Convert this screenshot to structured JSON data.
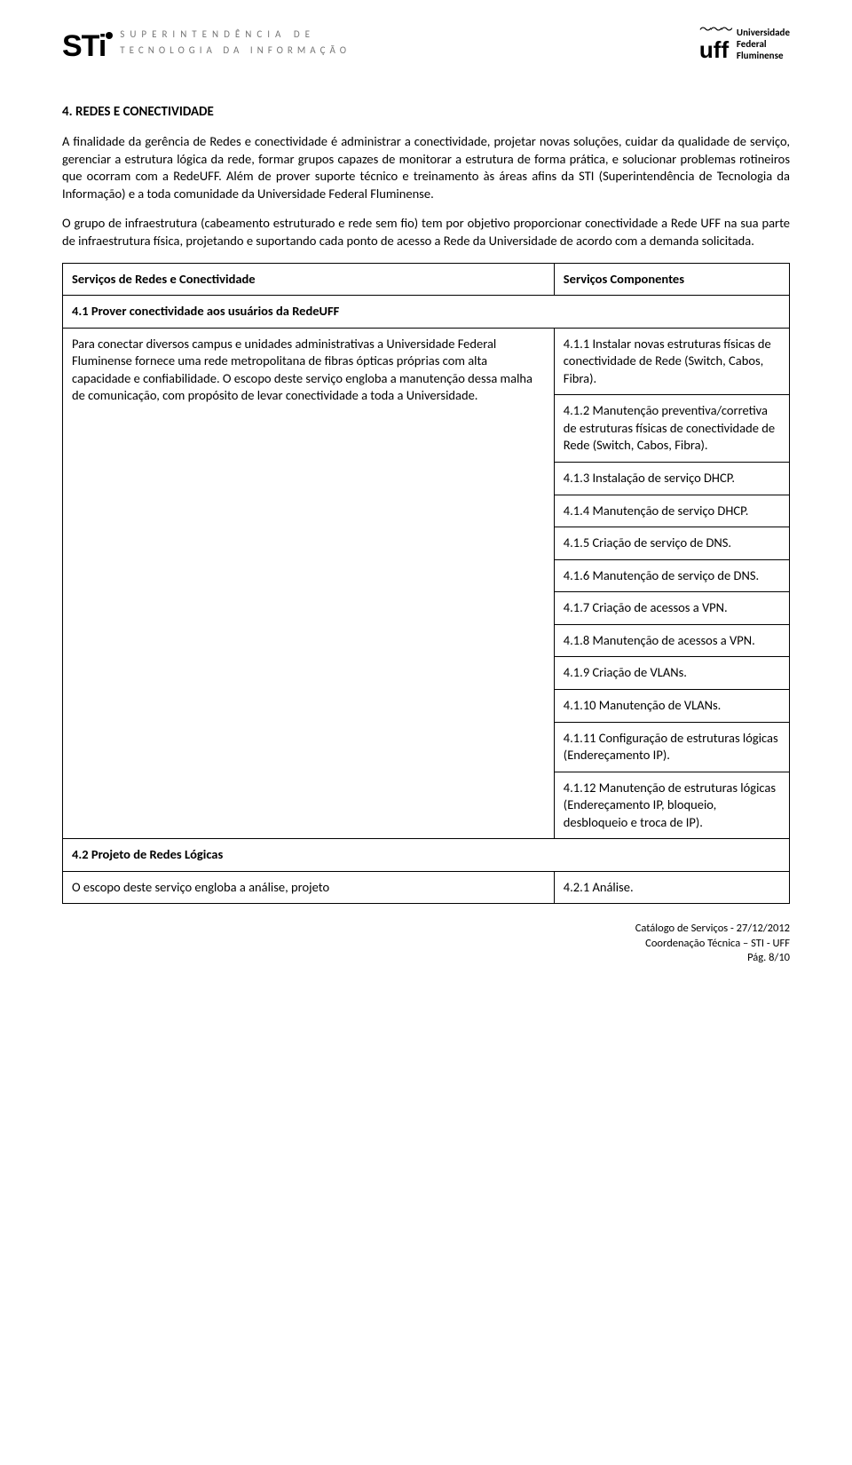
{
  "header": {
    "left": {
      "mark": "STi",
      "line1": "SUPERINTENDÊNCIA DE",
      "line2": "TECNOLOGIA DA INFORMAÇÃO"
    },
    "right": {
      "mark": "uff",
      "name1": "Universidade",
      "name2": "Federal",
      "name3": "Fluminense"
    }
  },
  "title": "4. REDES E CONECTIVIDADE",
  "para1": "A finalidade da gerência de Redes e conectividade é administrar a conectividade, projetar novas soluções, cuidar da qualidade de serviço, gerenciar a estrutura lógica da rede, formar grupos capazes de monitorar a estrutura de forma prática, e solucionar problemas rotineiros que ocorram com a RedeUFF. Além de prover suporte técnico e treinamento às áreas afins da STI (Superintendência de Tecnologia da Informação) e a toda comunidade da Universidade Federal Fluminense.",
  "para2": "O grupo de infraestrutura (cabeamento estruturado e rede sem fio) tem por objetivo proporcionar conectividade a Rede UFF na sua parte de infraestrutura física, projetando e suportando cada ponto de acesso a Rede da Universidade de acordo com a demanda solicitada.",
  "table": {
    "head_left": "Serviços de Redes e Conectividade",
    "head_right": "Serviços Componentes",
    "row_4_1_title": "4.1 Prover conectividade aos usuários da RedeUFF",
    "row_4_1_desc": "Para conectar diversos campus e unidades administrativas a Universidade Federal Fluminense fornece uma rede metropolitana de fibras ópticas próprias com alta capacidade e confiabilidade. O escopo deste serviço engloba a manutenção dessa malha de comunicação, com propósito de levar conectividade a toda a Universidade.",
    "row_4_1_items": [
      "4.1.1 Instalar novas estruturas físicas de conectividade de Rede (Switch, Cabos, Fibra).",
      "4.1.2 Manutenção preventiva/corretiva de estruturas físicas de conectividade de Rede (Switch, Cabos, Fibra).",
      "4.1.3 Instalação de serviço DHCP.",
      "4.1.4 Manutenção de serviço DHCP.",
      "4.1.5 Criação de serviço de DNS.",
      "4.1.6 Manutenção de serviço de DNS.",
      "4.1.7 Criação de acessos a VPN.",
      "4.1.8 Manutenção de acessos a VPN.",
      "4.1.9 Criação de VLANs.",
      "4.1.10 Manutenção de VLANs.",
      "4.1.11 Configuração de estruturas lógicas (Endereçamento IP).",
      "4.1.12 Manutenção de estruturas lógicas (Endereçamento IP, bloqueio, desbloqueio e troca de IP)."
    ],
    "row_4_2_title": "4.2 Projeto de Redes Lógicas",
    "row_4_2_desc": "O escopo deste serviço engloba a análise, projeto",
    "row_4_2_item": "4.2.1 Análise."
  },
  "footer": {
    "line1": "Catálogo de Serviços - 27/12/2012",
    "line2": "Coordenação Técnica – STI - UFF",
    "line3": "Pág. 8/10"
  }
}
